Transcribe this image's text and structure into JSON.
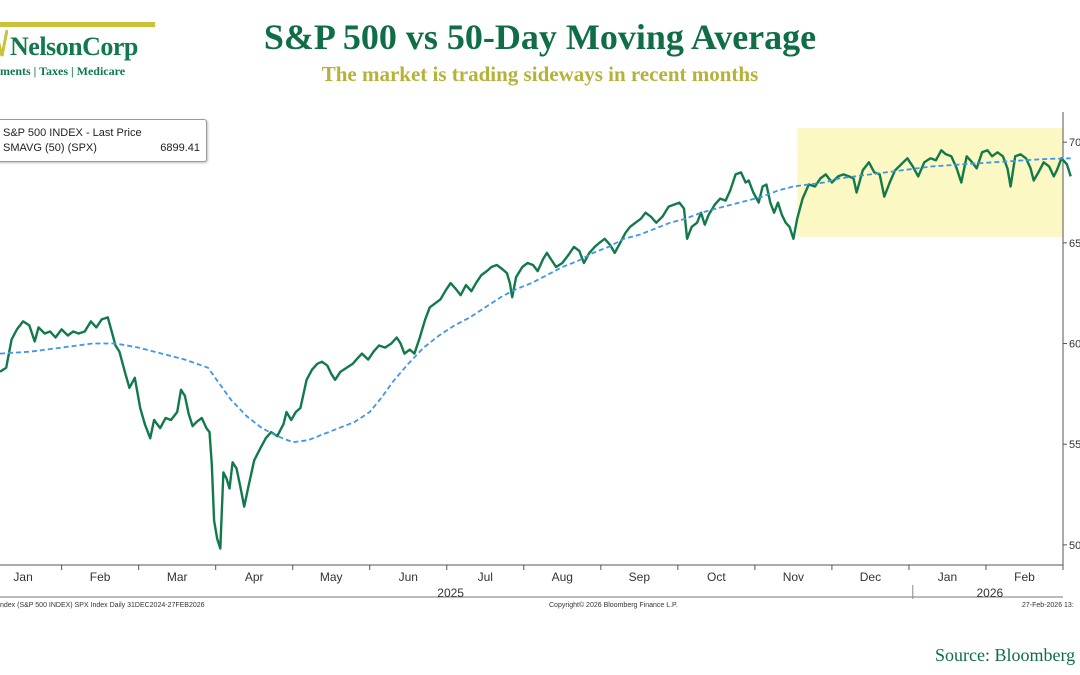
{
  "logo": {
    "name": "NelsonCorp",
    "tagline": "ments | Taxes | Medicare"
  },
  "header": {
    "title": "S&P 500 vs 50-Day Moving Average",
    "subtitle": "The market is trading sideways in recent months"
  },
  "legend": {
    "series1_label": "S&P 500 INDEX - Last Price",
    "series2_label": "SMAVG (50) (SPX)",
    "series2_value": "6899.41"
  },
  "footer": {
    "left": "ndex (S&P 500 INDEX) SPX Index Daily 31DEC2024-27FEB2026",
    "center": "Copyright© 2026 Bloomberg Finance L.P.",
    "right": "27-Feb-2026 13:",
    "source": "Source: Bloomberg"
  },
  "colors": {
    "price": "#127a4a",
    "ma": "#3f97e8",
    "highlight": "#fbf8c4",
    "title": "#0f6e45",
    "subtitle": "#b5b23a"
  },
  "chart_data": {
    "type": "line",
    "title": "S&P 500 vs 50-Day Moving Average",
    "ylim": [
      4900,
      7150
    ],
    "xlim": [
      0,
      13.8
    ],
    "y_ticks": [
      5000,
      5500,
      6000,
      6500,
      7000
    ],
    "y_tick_labels": [
      "50",
      "55",
      "60",
      "65",
      "70"
    ],
    "x_ticks": [
      0.3,
      1.3,
      2.3,
      3.3,
      4.3,
      5.3,
      6.3,
      7.3,
      8.3,
      9.3,
      10.3,
      11.3,
      12.3,
      13.3
    ],
    "x_tick_labels": [
      "Jan",
      "Feb",
      "Mar",
      "Apr",
      "May",
      "Jun",
      "Jul",
      "Aug",
      "Sep",
      "Oct",
      "Nov",
      "Dec",
      "Jan",
      "Feb"
    ],
    "year_labels": [
      {
        "x": 5.85,
        "label": "2025"
      },
      {
        "x": 12.85,
        "label": "2026"
      }
    ],
    "year_divider_x": 11.85,
    "highlight": {
      "x": [
        10.35,
        13.8
      ],
      "y": [
        6530,
        7070
      ]
    },
    "series": [
      {
        "name": "S&P 500 INDEX - Last Price",
        "style": "solid",
        "points": [
          [
            0.0,
            5860
          ],
          [
            0.08,
            5880
          ],
          [
            0.15,
            6020
          ],
          [
            0.22,
            6070
          ],
          [
            0.3,
            6110
          ],
          [
            0.38,
            6090
          ],
          [
            0.45,
            6010
          ],
          [
            0.5,
            6080
          ],
          [
            0.58,
            6050
          ],
          [
            0.65,
            6060
          ],
          [
            0.72,
            6030
          ],
          [
            0.8,
            6070
          ],
          [
            0.88,
            6040
          ],
          [
            0.95,
            6060
          ],
          [
            1.02,
            6050
          ],
          [
            1.1,
            6060
          ],
          [
            1.18,
            6110
          ],
          [
            1.25,
            6080
          ],
          [
            1.32,
            6120
          ],
          [
            1.4,
            6130
          ],
          [
            1.45,
            6060
          ],
          [
            1.5,
            5990
          ],
          [
            1.55,
            5960
          ],
          [
            1.62,
            5860
          ],
          [
            1.68,
            5780
          ],
          [
            1.75,
            5830
          ],
          [
            1.82,
            5680
          ],
          [
            1.88,
            5600
          ],
          [
            1.95,
            5530
          ],
          [
            2.0,
            5620
          ],
          [
            2.08,
            5580
          ],
          [
            2.15,
            5630
          ],
          [
            2.22,
            5620
          ],
          [
            2.3,
            5660
          ],
          [
            2.35,
            5770
          ],
          [
            2.4,
            5740
          ],
          [
            2.45,
            5650
          ],
          [
            2.5,
            5590
          ],
          [
            2.55,
            5610
          ],
          [
            2.62,
            5630
          ],
          [
            2.68,
            5580
          ],
          [
            2.72,
            5560
          ],
          [
            2.75,
            5400
          ],
          [
            2.78,
            5120
          ],
          [
            2.82,
            5030
          ],
          [
            2.86,
            4982
          ],
          [
            2.9,
            5360
          ],
          [
            2.94,
            5330
          ],
          [
            2.98,
            5280
          ],
          [
            3.02,
            5410
          ],
          [
            3.07,
            5380
          ],
          [
            3.12,
            5290
          ],
          [
            3.17,
            5190
          ],
          [
            3.22,
            5280
          ],
          [
            3.3,
            5420
          ],
          [
            3.38,
            5480
          ],
          [
            3.45,
            5530
          ],
          [
            3.52,
            5560
          ],
          [
            3.6,
            5540
          ],
          [
            3.68,
            5600
          ],
          [
            3.72,
            5660
          ],
          [
            3.78,
            5620
          ],
          [
            3.84,
            5660
          ],
          [
            3.9,
            5680
          ],
          [
            3.98,
            5820
          ],
          [
            4.05,
            5870
          ],
          [
            4.12,
            5900
          ],
          [
            4.18,
            5910
          ],
          [
            4.25,
            5890
          ],
          [
            4.3,
            5850
          ],
          [
            4.35,
            5820
          ],
          [
            4.42,
            5860
          ],
          [
            4.5,
            5880
          ],
          [
            4.58,
            5900
          ],
          [
            4.65,
            5930
          ],
          [
            4.7,
            5950
          ],
          [
            4.78,
            5920
          ],
          [
            4.85,
            5960
          ],
          [
            4.92,
            5990
          ],
          [
            5.0,
            5980
          ],
          [
            5.08,
            6000
          ],
          [
            5.15,
            6030
          ],
          [
            5.2,
            6000
          ],
          [
            5.25,
            5950
          ],
          [
            5.32,
            5970
          ],
          [
            5.38,
            5950
          ],
          [
            5.45,
            6030
          ],
          [
            5.52,
            6120
          ],
          [
            5.58,
            6180
          ],
          [
            5.65,
            6200
          ],
          [
            5.72,
            6220
          ],
          [
            5.78,
            6260
          ],
          [
            5.85,
            6300
          ],
          [
            5.92,
            6270
          ],
          [
            5.98,
            6240
          ],
          [
            6.05,
            6290
          ],
          [
            6.12,
            6260
          ],
          [
            6.18,
            6300
          ],
          [
            6.25,
            6340
          ],
          [
            6.32,
            6360
          ],
          [
            6.38,
            6380
          ],
          [
            6.45,
            6390
          ],
          [
            6.52,
            6370
          ],
          [
            6.58,
            6350
          ],
          [
            6.62,
            6300
          ],
          [
            6.65,
            6230
          ],
          [
            6.7,
            6330
          ],
          [
            6.78,
            6380
          ],
          [
            6.85,
            6400
          ],
          [
            6.92,
            6390
          ],
          [
            6.98,
            6360
          ],
          [
            7.05,
            6420
          ],
          [
            7.1,
            6450
          ],
          [
            7.15,
            6420
          ],
          [
            7.22,
            6380
          ],
          [
            7.3,
            6400
          ],
          [
            7.38,
            6440
          ],
          [
            7.45,
            6480
          ],
          [
            7.52,
            6460
          ],
          [
            7.58,
            6400
          ],
          [
            7.65,
            6450
          ],
          [
            7.72,
            6480
          ],
          [
            7.78,
            6500
          ],
          [
            7.85,
            6520
          ],
          [
            7.92,
            6490
          ],
          [
            7.98,
            6450
          ],
          [
            8.05,
            6500
          ],
          [
            8.12,
            6550
          ],
          [
            8.18,
            6580
          ],
          [
            8.25,
            6600
          ],
          [
            8.32,
            6620
          ],
          [
            8.38,
            6650
          ],
          [
            8.45,
            6630
          ],
          [
            8.52,
            6600
          ],
          [
            8.6,
            6630
          ],
          [
            8.68,
            6680
          ],
          [
            8.75,
            6690
          ],
          [
            8.82,
            6700
          ],
          [
            8.88,
            6670
          ],
          [
            8.92,
            6520
          ],
          [
            8.98,
            6580
          ],
          [
            9.05,
            6600
          ],
          [
            9.1,
            6650
          ],
          [
            9.15,
            6590
          ],
          [
            9.2,
            6640
          ],
          [
            9.28,
            6690
          ],
          [
            9.35,
            6720
          ],
          [
            9.42,
            6710
          ],
          [
            9.48,
            6760
          ],
          [
            9.55,
            6840
          ],
          [
            9.62,
            6850
          ],
          [
            9.68,
            6800
          ],
          [
            9.72,
            6810
          ],
          [
            9.78,
            6750
          ],
          [
            9.85,
            6700
          ],
          [
            9.9,
            6780
          ],
          [
            9.95,
            6790
          ],
          [
            10.0,
            6700
          ],
          [
            10.05,
            6650
          ],
          [
            10.1,
            6700
          ],
          [
            10.15,
            6640
          ],
          [
            10.2,
            6600
          ],
          [
            10.25,
            6580
          ],
          [
            10.3,
            6520
          ],
          [
            10.35,
            6620
          ],
          [
            10.42,
            6720
          ],
          [
            10.5,
            6790
          ],
          [
            10.58,
            6780
          ],
          [
            10.65,
            6820
          ],
          [
            10.72,
            6840
          ],
          [
            10.8,
            6800
          ],
          [
            10.88,
            6830
          ],
          [
            10.95,
            6840
          ],
          [
            11.02,
            6830
          ],
          [
            11.08,
            6820
          ],
          [
            11.12,
            6750
          ],
          [
            11.2,
            6860
          ],
          [
            11.28,
            6900
          ],
          [
            11.35,
            6850
          ],
          [
            11.42,
            6840
          ],
          [
            11.48,
            6730
          ],
          [
            11.55,
            6800
          ],
          [
            11.62,
            6860
          ],
          [
            11.7,
            6890
          ],
          [
            11.78,
            6920
          ],
          [
            11.85,
            6880
          ],
          [
            11.92,
            6830
          ],
          [
            12.0,
            6900
          ],
          [
            12.08,
            6920
          ],
          [
            12.15,
            6910
          ],
          [
            12.22,
            6960
          ],
          [
            12.28,
            6940
          ],
          [
            12.35,
            6930
          ],
          [
            12.42,
            6870
          ],
          [
            12.48,
            6800
          ],
          [
            12.55,
            6930
          ],
          [
            12.62,
            6900
          ],
          [
            12.68,
            6870
          ],
          [
            12.75,
            6950
          ],
          [
            12.82,
            6960
          ],
          [
            12.88,
            6930
          ],
          [
            12.95,
            6950
          ],
          [
            13.02,
            6930
          ],
          [
            13.08,
            6870
          ],
          [
            13.12,
            6780
          ],
          [
            13.18,
            6930
          ],
          [
            13.25,
            6940
          ],
          [
            13.32,
            6920
          ],
          [
            13.38,
            6870
          ],
          [
            13.42,
            6810
          ],
          [
            13.48,
            6850
          ],
          [
            13.55,
            6900
          ],
          [
            13.62,
            6880
          ],
          [
            13.68,
            6830
          ],
          [
            13.72,
            6860
          ],
          [
            13.78,
            6920
          ],
          [
            13.85,
            6890
          ],
          [
            13.9,
            6830
          ]
        ]
      },
      {
        "name": "SMAVG (50) (SPX)",
        "style": "dashed",
        "points": [
          [
            0.0,
            5950
          ],
          [
            0.4,
            5960
          ],
          [
            0.8,
            5980
          ],
          [
            1.2,
            6000
          ],
          [
            1.5,
            6000
          ],
          [
            1.8,
            5980
          ],
          [
            2.1,
            5950
          ],
          [
            2.4,
            5920
          ],
          [
            2.7,
            5880
          ],
          [
            2.85,
            5800
          ],
          [
            3.0,
            5720
          ],
          [
            3.2,
            5640
          ],
          [
            3.4,
            5580
          ],
          [
            3.6,
            5540
          ],
          [
            3.8,
            5510
          ],
          [
            4.0,
            5520
          ],
          [
            4.2,
            5550
          ],
          [
            4.4,
            5580
          ],
          [
            4.6,
            5610
          ],
          [
            4.8,
            5660
          ],
          [
            4.95,
            5730
          ],
          [
            5.1,
            5810
          ],
          [
            5.3,
            5900
          ],
          [
            5.5,
            5980
          ],
          [
            5.7,
            6040
          ],
          [
            5.9,
            6090
          ],
          [
            6.1,
            6130
          ],
          [
            6.3,
            6180
          ],
          [
            6.5,
            6230
          ],
          [
            6.7,
            6270
          ],
          [
            6.9,
            6300
          ],
          [
            7.1,
            6340
          ],
          [
            7.3,
            6380
          ],
          [
            7.5,
            6410
          ],
          [
            7.7,
            6450
          ],
          [
            7.9,
            6480
          ],
          [
            8.1,
            6520
          ],
          [
            8.3,
            6540
          ],
          [
            8.5,
            6570
          ],
          [
            8.7,
            6600
          ],
          [
            8.9,
            6620
          ],
          [
            9.1,
            6650
          ],
          [
            9.3,
            6670
          ],
          [
            9.5,
            6690
          ],
          [
            9.7,
            6710
          ],
          [
            9.9,
            6730
          ],
          [
            10.1,
            6760
          ],
          [
            10.3,
            6780
          ],
          [
            10.5,
            6790
          ],
          [
            10.7,
            6800
          ],
          [
            10.9,
            6820
          ],
          [
            11.1,
            6830
          ],
          [
            11.3,
            6840
          ],
          [
            11.5,
            6850
          ],
          [
            11.7,
            6860
          ],
          [
            11.9,
            6870
          ],
          [
            12.1,
            6880
          ],
          [
            12.3,
            6885
          ],
          [
            12.5,
            6890
          ],
          [
            12.7,
            6895
          ],
          [
            12.9,
            6900
          ],
          [
            13.1,
            6905
          ],
          [
            13.3,
            6910
          ],
          [
            13.5,
            6915
          ],
          [
            13.7,
            6918
          ],
          [
            13.9,
            6920
          ]
        ]
      }
    ]
  }
}
